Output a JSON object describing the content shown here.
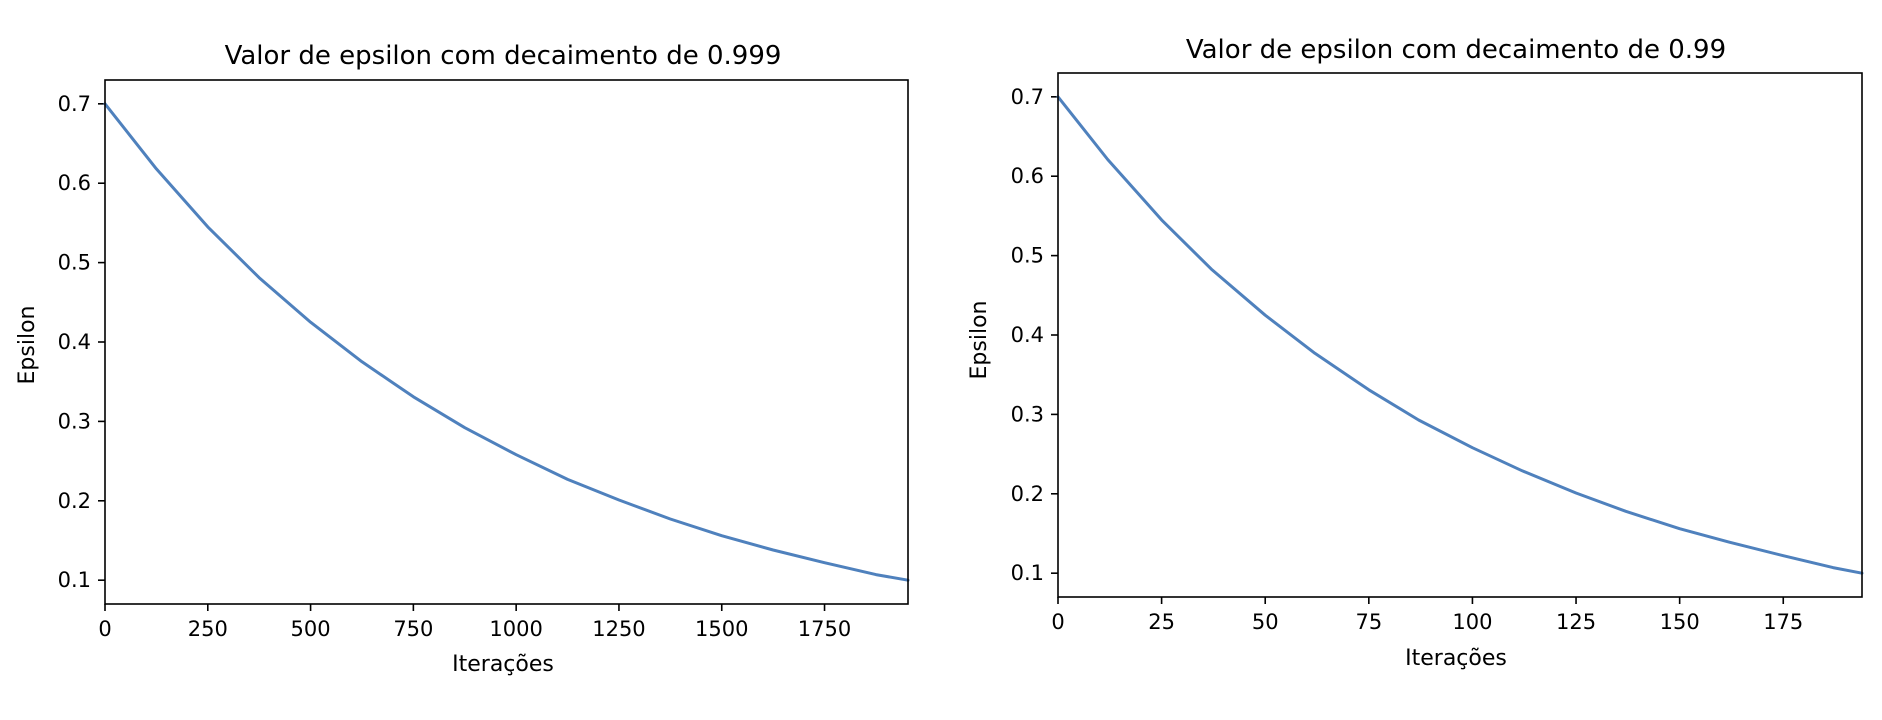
{
  "figure": {
    "background": "#ffffff"
  },
  "chart_data": [
    {
      "type": "line",
      "title": "Valor de epsilon com decaimento de 0.999",
      "xlabel": "Iterações",
      "ylabel": "Epsilon",
      "xlim": [
        0,
        1953
      ],
      "ylim": [
        0.07,
        0.73
      ],
      "xticks": [
        0,
        250,
        500,
        750,
        1000,
        1250,
        1500,
        1750
      ],
      "xtick_labels": [
        "0",
        "250",
        "500",
        "750",
        "1000",
        "1250",
        "1500",
        "1750"
      ],
      "yticks": [
        0.1,
        0.2,
        0.3,
        0.4,
        0.5,
        0.6,
        0.7
      ],
      "ytick_labels": [
        "0.1",
        "0.2",
        "0.3",
        "0.4",
        "0.5",
        "0.6",
        "0.7"
      ],
      "grid": false,
      "series": [
        {
          "color": "#4f81bd",
          "x": [
            0,
            125,
            250,
            375,
            500,
            625,
            750,
            875,
            1000,
            1125,
            1250,
            1375,
            1500,
            1625,
            1750,
            1875,
            1953
          ],
          "y": [
            0.7,
            0.618,
            0.545,
            0.481,
            0.425,
            0.375,
            0.331,
            0.292,
            0.258,
            0.227,
            0.201,
            0.177,
            0.156,
            0.138,
            0.122,
            0.107,
            0.1
          ]
        }
      ]
    },
    {
      "type": "line",
      "title": "Valor de epsilon com decaimento de 0.99",
      "xlabel": "Iterações",
      "ylabel": "Epsilon",
      "xlim": [
        0,
        194
      ],
      "ylim": [
        0.07,
        0.73
      ],
      "xticks": [
        0,
        25,
        50,
        75,
        100,
        125,
        150,
        175
      ],
      "xtick_labels": [
        "0",
        "25",
        "50",
        "75",
        "100",
        "125",
        "150",
        "175"
      ],
      "yticks": [
        0.1,
        0.2,
        0.3,
        0.4,
        0.5,
        0.6,
        0.7
      ],
      "ytick_labels": [
        "0.1",
        "0.2",
        "0.3",
        "0.4",
        "0.5",
        "0.6",
        "0.7"
      ],
      "grid": false,
      "series": [
        {
          "color": "#4f81bd",
          "x": [
            0,
            12,
            25,
            37,
            50,
            62,
            75,
            87,
            100,
            112,
            125,
            137,
            150,
            162,
            175,
            187,
            194
          ],
          "y": [
            0.7,
            0.621,
            0.545,
            0.483,
            0.425,
            0.377,
            0.331,
            0.293,
            0.258,
            0.229,
            0.201,
            0.178,
            0.156,
            0.139,
            0.122,
            0.107,
            0.1
          ]
        }
      ]
    }
  ]
}
